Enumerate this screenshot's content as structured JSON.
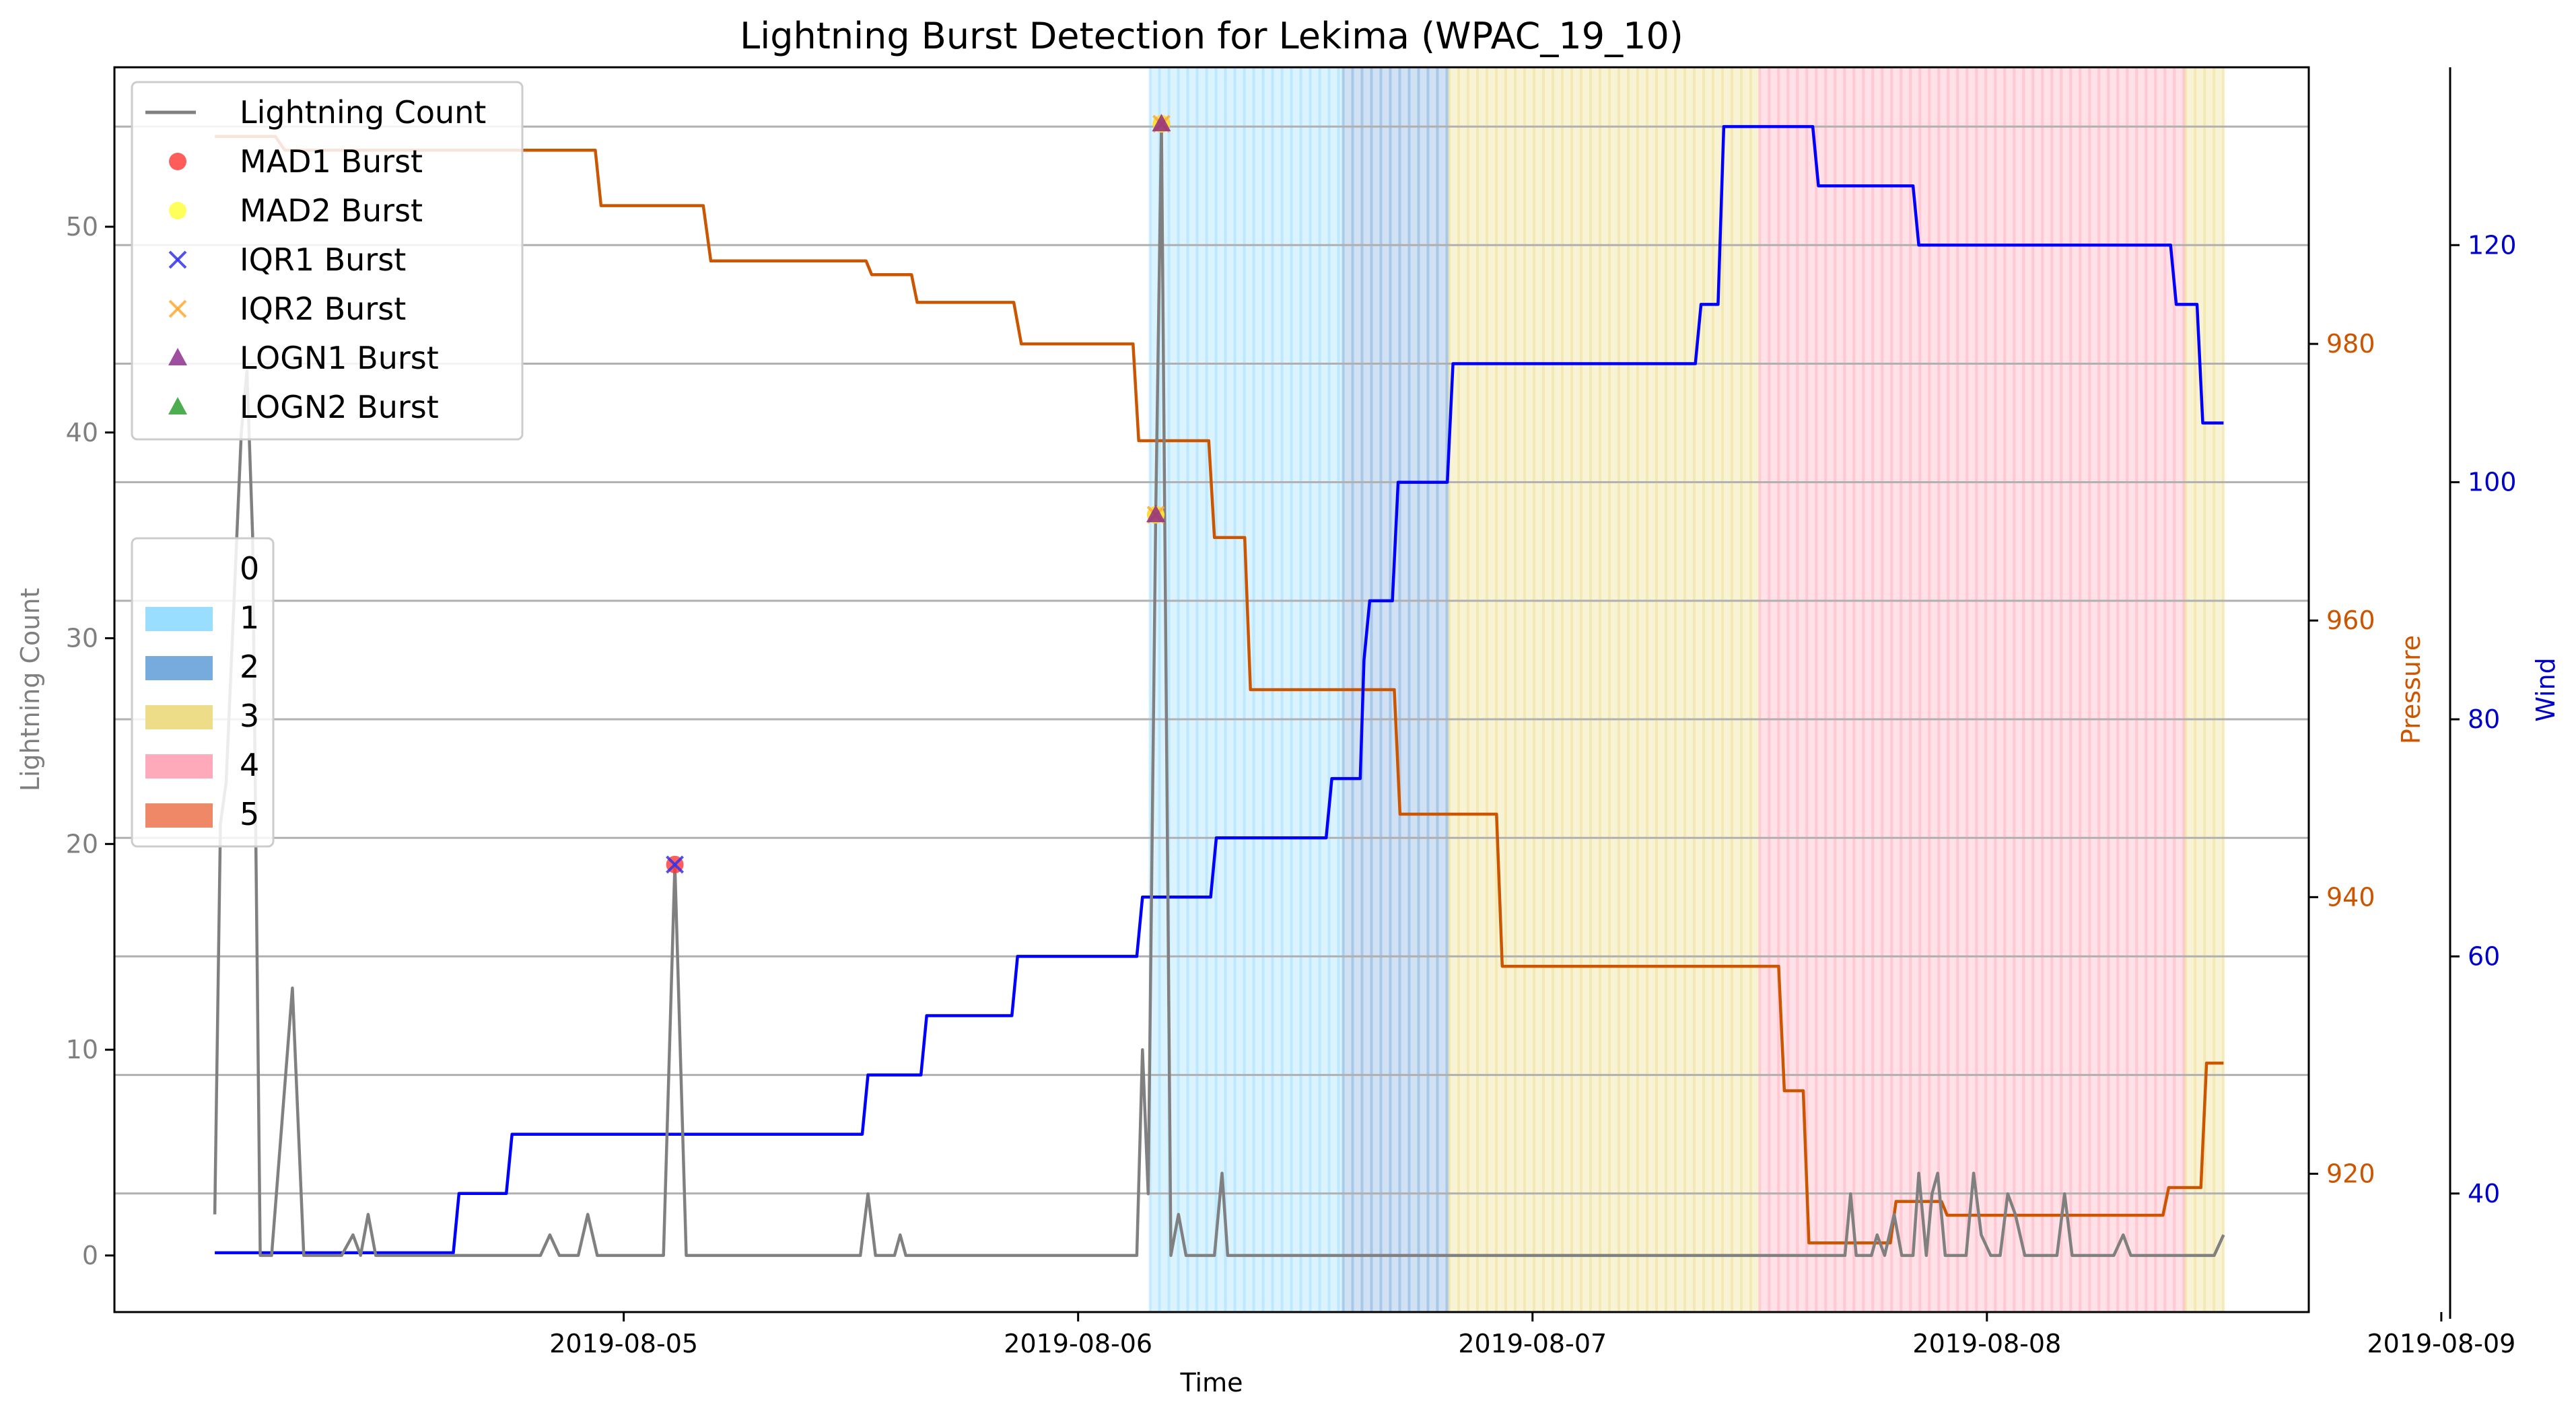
{
  "chart_data": {
    "type": "line",
    "title": "Lightning Burst Detection for Lekima (WPAC_19_10)",
    "xlabel": "Time",
    "x_ticks": [
      "2019-08-05",
      "2019-08-06",
      "2019-08-07",
      "2019-08-08",
      "2019-08-09"
    ],
    "x_range_hours": [
      -15,
      42
    ],
    "axes": {
      "left": {
        "label": "Lightning Count",
        "color": "#7f7f7f",
        "ylim": [
          -2.75,
          57.75
        ],
        "ticks": [
          "0",
          "10",
          "20",
          "30",
          "40",
          "50"
        ]
      },
      "pressure": {
        "label": "Pressure",
        "color": "#cc5500",
        "ylim": [
          910,
          1000
        ],
        "ticks": [
          "920",
          "940",
          "960",
          "980"
        ]
      },
      "wind": {
        "label": "Wind",
        "color": "#0000cc",
        "ylim": [
          30,
          135
        ],
        "ticks": [
          "40",
          "60",
          "80",
          "100",
          "120"
        ]
      }
    },
    "grid": "wind axis horizontal gridlines",
    "series": [
      {
        "name": "Lightning Count",
        "color": "#808080",
        "points_hours": [
          [
            -21.6,
            2
          ],
          [
            -21.3,
            21
          ],
          [
            -21.0,
            23
          ],
          [
            -20.2,
            40
          ],
          [
            -19.9,
            43
          ],
          [
            -19.6,
            35
          ],
          [
            -19.2,
            0
          ],
          [
            -18.6,
            0
          ],
          [
            -17.5,
            13
          ],
          [
            -16.9,
            0
          ],
          [
            -14.9,
            0
          ],
          [
            -14.3,
            1
          ],
          [
            -13.9,
            0
          ],
          [
            -13.5,
            2
          ],
          [
            -13.1,
            0
          ],
          [
            -4.4,
            0
          ],
          [
            -3.9,
            1
          ],
          [
            -3.4,
            0
          ],
          [
            -2.4,
            0
          ],
          [
            -1.9,
            2
          ],
          [
            -1.4,
            0
          ],
          [
            1.7,
            0
          ],
          [
            2.1,
            0
          ],
          [
            2.7,
            19
          ],
          [
            3.3,
            0
          ],
          [
            12.5,
            0
          ],
          [
            12.9,
            3
          ],
          [
            13.3,
            0
          ],
          [
            14.3,
            0
          ],
          [
            14.6,
            1
          ],
          [
            14.9,
            0
          ],
          [
            27.1,
            0
          ],
          [
            27.4,
            10
          ],
          [
            27.7,
            3
          ],
          [
            28.1,
            36
          ],
          [
            28.4,
            55
          ],
          [
            28.9,
            0
          ],
          [
            29.3,
            2
          ],
          [
            29.7,
            0
          ],
          [
            31.2,
            0
          ],
          [
            31.6,
            4
          ],
          [
            31.9,
            0
          ]
        ]
      },
      {
        "name": "Pressure",
        "color": "#cc5500",
        "points_hours": [
          [
            -21.6,
            995
          ],
          [
            -18.4,
            995
          ],
          [
            -17.9,
            994
          ],
          [
            -1.5,
            994
          ],
          [
            -1.2,
            990
          ],
          [
            1.5,
            990
          ],
          [
            1.9,
            990
          ],
          [
            4.2,
            990
          ],
          [
            4.6,
            986
          ],
          [
            12.8,
            986
          ],
          [
            13.1,
            985
          ],
          [
            15.2,
            985
          ],
          [
            15.5,
            983
          ],
          [
            20.6,
            983
          ],
          [
            21.0,
            980
          ],
          [
            26.9,
            980
          ],
          [
            27.2,
            973
          ],
          [
            30.9,
            973
          ],
          [
            31.2,
            966
          ]
        ]
      },
      {
        "name": "Wind",
        "color": "#0000ff",
        "points_hours": [
          [
            -21.6,
            35
          ],
          [
            -9.0,
            35
          ],
          [
            -8.7,
            40
          ],
          [
            -6.2,
            40
          ],
          [
            -5.9,
            45
          ],
          [
            12.6,
            45
          ],
          [
            12.9,
            50
          ],
          [
            15.7,
            50
          ],
          [
            16.0,
            55
          ],
          [
            20.5,
            55
          ],
          [
            20.8,
            60
          ],
          [
            27.1,
            60
          ],
          [
            27.4,
            65
          ],
          [
            31.0,
            65
          ],
          [
            31.3,
            70
          ]
        ]
      }
    ],
    "wind_more": [
      [
        31.3,
        70
      ],
      [
        37.1,
        70
      ],
      [
        37.4,
        75
      ],
      [
        38.9,
        75
      ],
      [
        39.1,
        85
      ],
      [
        39.4,
        90
      ],
      [
        40.6,
        90
      ],
      [
        40.9,
        100
      ],
      [
        43.5,
        100
      ],
      [
        43.8,
        110
      ],
      [
        56.6,
        110
      ],
      [
        56.9,
        115
      ],
      [
        57.8,
        115
      ],
      [
        58.1,
        130
      ],
      [
        62.8,
        130
      ],
      [
        63.1,
        125
      ],
      [
        68.1,
        125
      ],
      [
        68.4,
        120
      ],
      [
        81.7,
        120
      ],
      [
        82.0,
        115
      ],
      [
        83.1,
        115
      ],
      [
        83.4,
        105
      ],
      [
        84.5,
        105
      ]
    ],
    "pressure_more": [
      [
        31.2,
        966
      ],
      [
        32.8,
        966
      ],
      [
        33.1,
        955
      ],
      [
        40.7,
        955
      ],
      [
        41.0,
        946
      ],
      [
        46.1,
        946
      ],
      [
        46.4,
        935
      ],
      [
        61.0,
        935
      ],
      [
        61.3,
        926
      ],
      [
        62.3,
        926
      ],
      [
        62.6,
        915
      ],
      [
        66.9,
        915
      ],
      [
        67.2,
        918
      ],
      [
        69.6,
        918
      ],
      [
        69.9,
        917
      ],
      [
        81.3,
        917
      ],
      [
        81.6,
        919
      ],
      [
        83.3,
        919
      ],
      [
        83.6,
        928
      ],
      [
        84.5,
        928
      ]
    ],
    "lightning_more": [
      [
        31.9,
        0
      ],
      [
        64.5,
        0
      ],
      [
        64.8,
        3
      ],
      [
        65.1,
        0
      ],
      [
        65.9,
        0
      ],
      [
        66.2,
        1
      ],
      [
        66.6,
        0
      ],
      [
        67.1,
        2
      ],
      [
        67.5,
        0
      ],
      [
        68.1,
        0
      ],
      [
        68.4,
        4
      ],
      [
        68.8,
        0
      ],
      [
        69.1,
        3
      ],
      [
        69.4,
        4
      ],
      [
        69.8,
        0
      ],
      [
        70.9,
        0
      ],
      [
        71.3,
        4
      ],
      [
        71.7,
        1
      ],
      [
        72.2,
        0
      ],
      [
        72.7,
        0
      ],
      [
        73.1,
        3
      ],
      [
        73.5,
        2
      ],
      [
        74.0,
        0
      ],
      [
        75.7,
        0
      ],
      [
        76.1,
        3
      ],
      [
        76.5,
        0
      ],
      [
        78.7,
        0
      ],
      [
        79.2,
        1
      ],
      [
        79.6,
        0
      ],
      [
        84.0,
        0
      ],
      [
        84.5,
        1
      ]
    ],
    "bursts": [
      {
        "type": "MAD1 Burst",
        "hour": 2.7,
        "value": 19
      },
      {
        "type": "IQR1 Burst",
        "hour": 2.7,
        "value": 19
      },
      {
        "type": "MAD1 Burst",
        "hour": 28.1,
        "value": 36
      },
      {
        "type": "MAD2 Burst",
        "hour": 28.1,
        "value": 36
      },
      {
        "type": "IQR2 Burst",
        "hour": 28.1,
        "value": 36
      },
      {
        "type": "LOGN1 Burst",
        "hour": 28.1,
        "value": 36
      },
      {
        "type": "MAD1 Burst",
        "hour": 28.4,
        "value": 55
      },
      {
        "type": "MAD2 Burst",
        "hour": 28.4,
        "value": 55
      },
      {
        "type": "IQR2 Burst",
        "hour": 28.4,
        "value": 55
      },
      {
        "type": "LOGN1 Burst",
        "hour": 28.4,
        "value": 55
      }
    ],
    "category_bands_hours": [
      {
        "category": "1",
        "start": 27.8,
        "end": 38.0
      },
      {
        "category": "2",
        "start": 38.0,
        "end": 43.6
      },
      {
        "category": "3",
        "start": 43.6,
        "end": 60.0
      },
      {
        "category": "4",
        "start": 60.0,
        "end": 82.5
      },
      {
        "category": "3",
        "start": 82.5,
        "end": 84.5
      }
    ],
    "legend_markers": {
      "placement": "upper-left",
      "entries": [
        {
          "label": "Lightning Count",
          "symbol": "line",
          "color": "#808080"
        },
        {
          "label": "MAD1 Burst",
          "symbol": "circle",
          "color": "#ff3333"
        },
        {
          "label": "MAD2 Burst",
          "symbol": "circle",
          "color": "#ffff33"
        },
        {
          "label": "IQR1 Burst",
          "symbol": "x",
          "color": "#3333ee"
        },
        {
          "label": "IQR2 Burst",
          "symbol": "x",
          "color": "#ffaa33"
        },
        {
          "label": "LOGN1 Burst",
          "symbol": "triangle",
          "color": "#882288"
        },
        {
          "label": "LOGN2 Burst",
          "symbol": "triangle",
          "color": "#229922"
        }
      ]
    },
    "legend_categories": {
      "placement": "center-left",
      "entries": [
        {
          "label": "0",
          "color": "none"
        },
        {
          "label": "1",
          "color": "#99ddff"
        },
        {
          "label": "2",
          "color": "#77aadd"
        },
        {
          "label": "3",
          "color": "#eedd88"
        },
        {
          "label": "4",
          "color": "#ffaabb"
        },
        {
          "label": "5",
          "color": "#ee8866"
        }
      ]
    }
  }
}
